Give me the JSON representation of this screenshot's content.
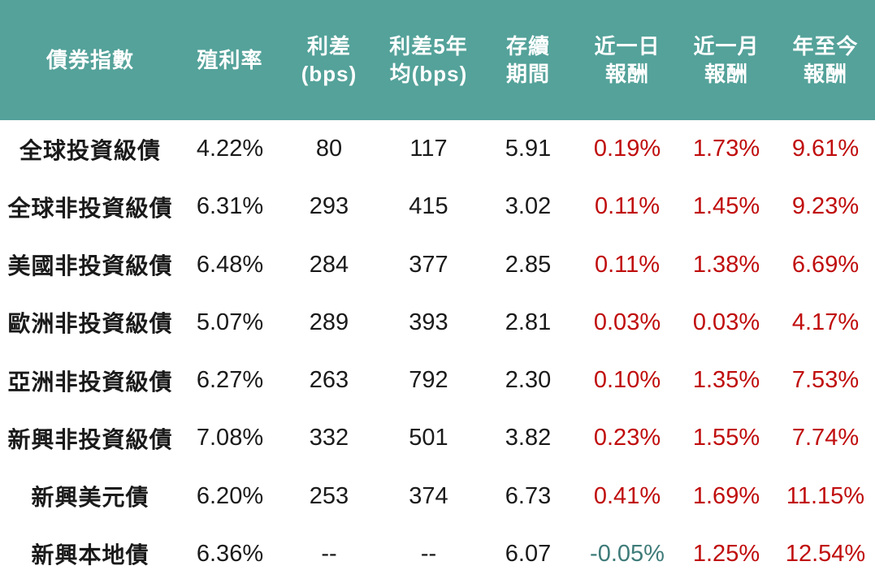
{
  "chart_data": {
    "type": "table",
    "columns": [
      {
        "key": "bond-index",
        "label": "債券指數"
      },
      {
        "key": "yield",
        "label": "殖利率"
      },
      {
        "key": "spread-bps",
        "label": "利差\n(bps)"
      },
      {
        "key": "spread-5y-avg-bps",
        "label": "利差5年\n均(bps)"
      },
      {
        "key": "duration",
        "label": "存續\n期間"
      },
      {
        "key": "return-1d",
        "label": "近一日\n報酬"
      },
      {
        "key": "return-1m",
        "label": "近一月\n報酬"
      },
      {
        "key": "return-ytd",
        "label": "年至今\n報酬"
      }
    ],
    "rows": [
      [
        "全球投資級債",
        "4.22%",
        "80",
        "117",
        "5.91",
        "0.19%",
        "1.73%",
        "9.61%"
      ],
      [
        "全球非投資級債",
        "6.31%",
        "293",
        "415",
        "3.02",
        "0.11%",
        "1.45%",
        "9.23%"
      ],
      [
        "美國非投資級債",
        "6.48%",
        "284",
        "377",
        "2.85",
        "0.11%",
        "1.38%",
        "6.69%"
      ],
      [
        "歐洲非投資級債",
        "5.07%",
        "289",
        "393",
        "2.81",
        "0.03%",
        "0.03%",
        "4.17%"
      ],
      [
        "亞洲非投資級債",
        "6.27%",
        "263",
        "792",
        "2.30",
        "0.10%",
        "1.35%",
        "7.53%"
      ],
      [
        "新興非投資級債",
        "7.08%",
        "332",
        "501",
        "3.82",
        "0.23%",
        "1.55%",
        "7.74%"
      ],
      [
        "新興美元債",
        "6.20%",
        "253",
        "374",
        "6.73",
        "0.41%",
        "1.69%",
        "11.15%"
      ],
      [
        "新興本地債",
        "6.36%",
        "--",
        "--",
        "6.07",
        "-0.05%",
        "1.25%",
        "12.54%"
      ]
    ],
    "return_column_indexes": [
      5,
      6,
      7
    ],
    "no_data_placeholder": "--"
  },
  "colors": {
    "header_bg": "#54a29a",
    "header_text": "#ffffff",
    "row_text": "#1a1a1a",
    "positive_return": "#c00d0d",
    "negative_return": "#3e7b79",
    "background": "#ffffff"
  }
}
